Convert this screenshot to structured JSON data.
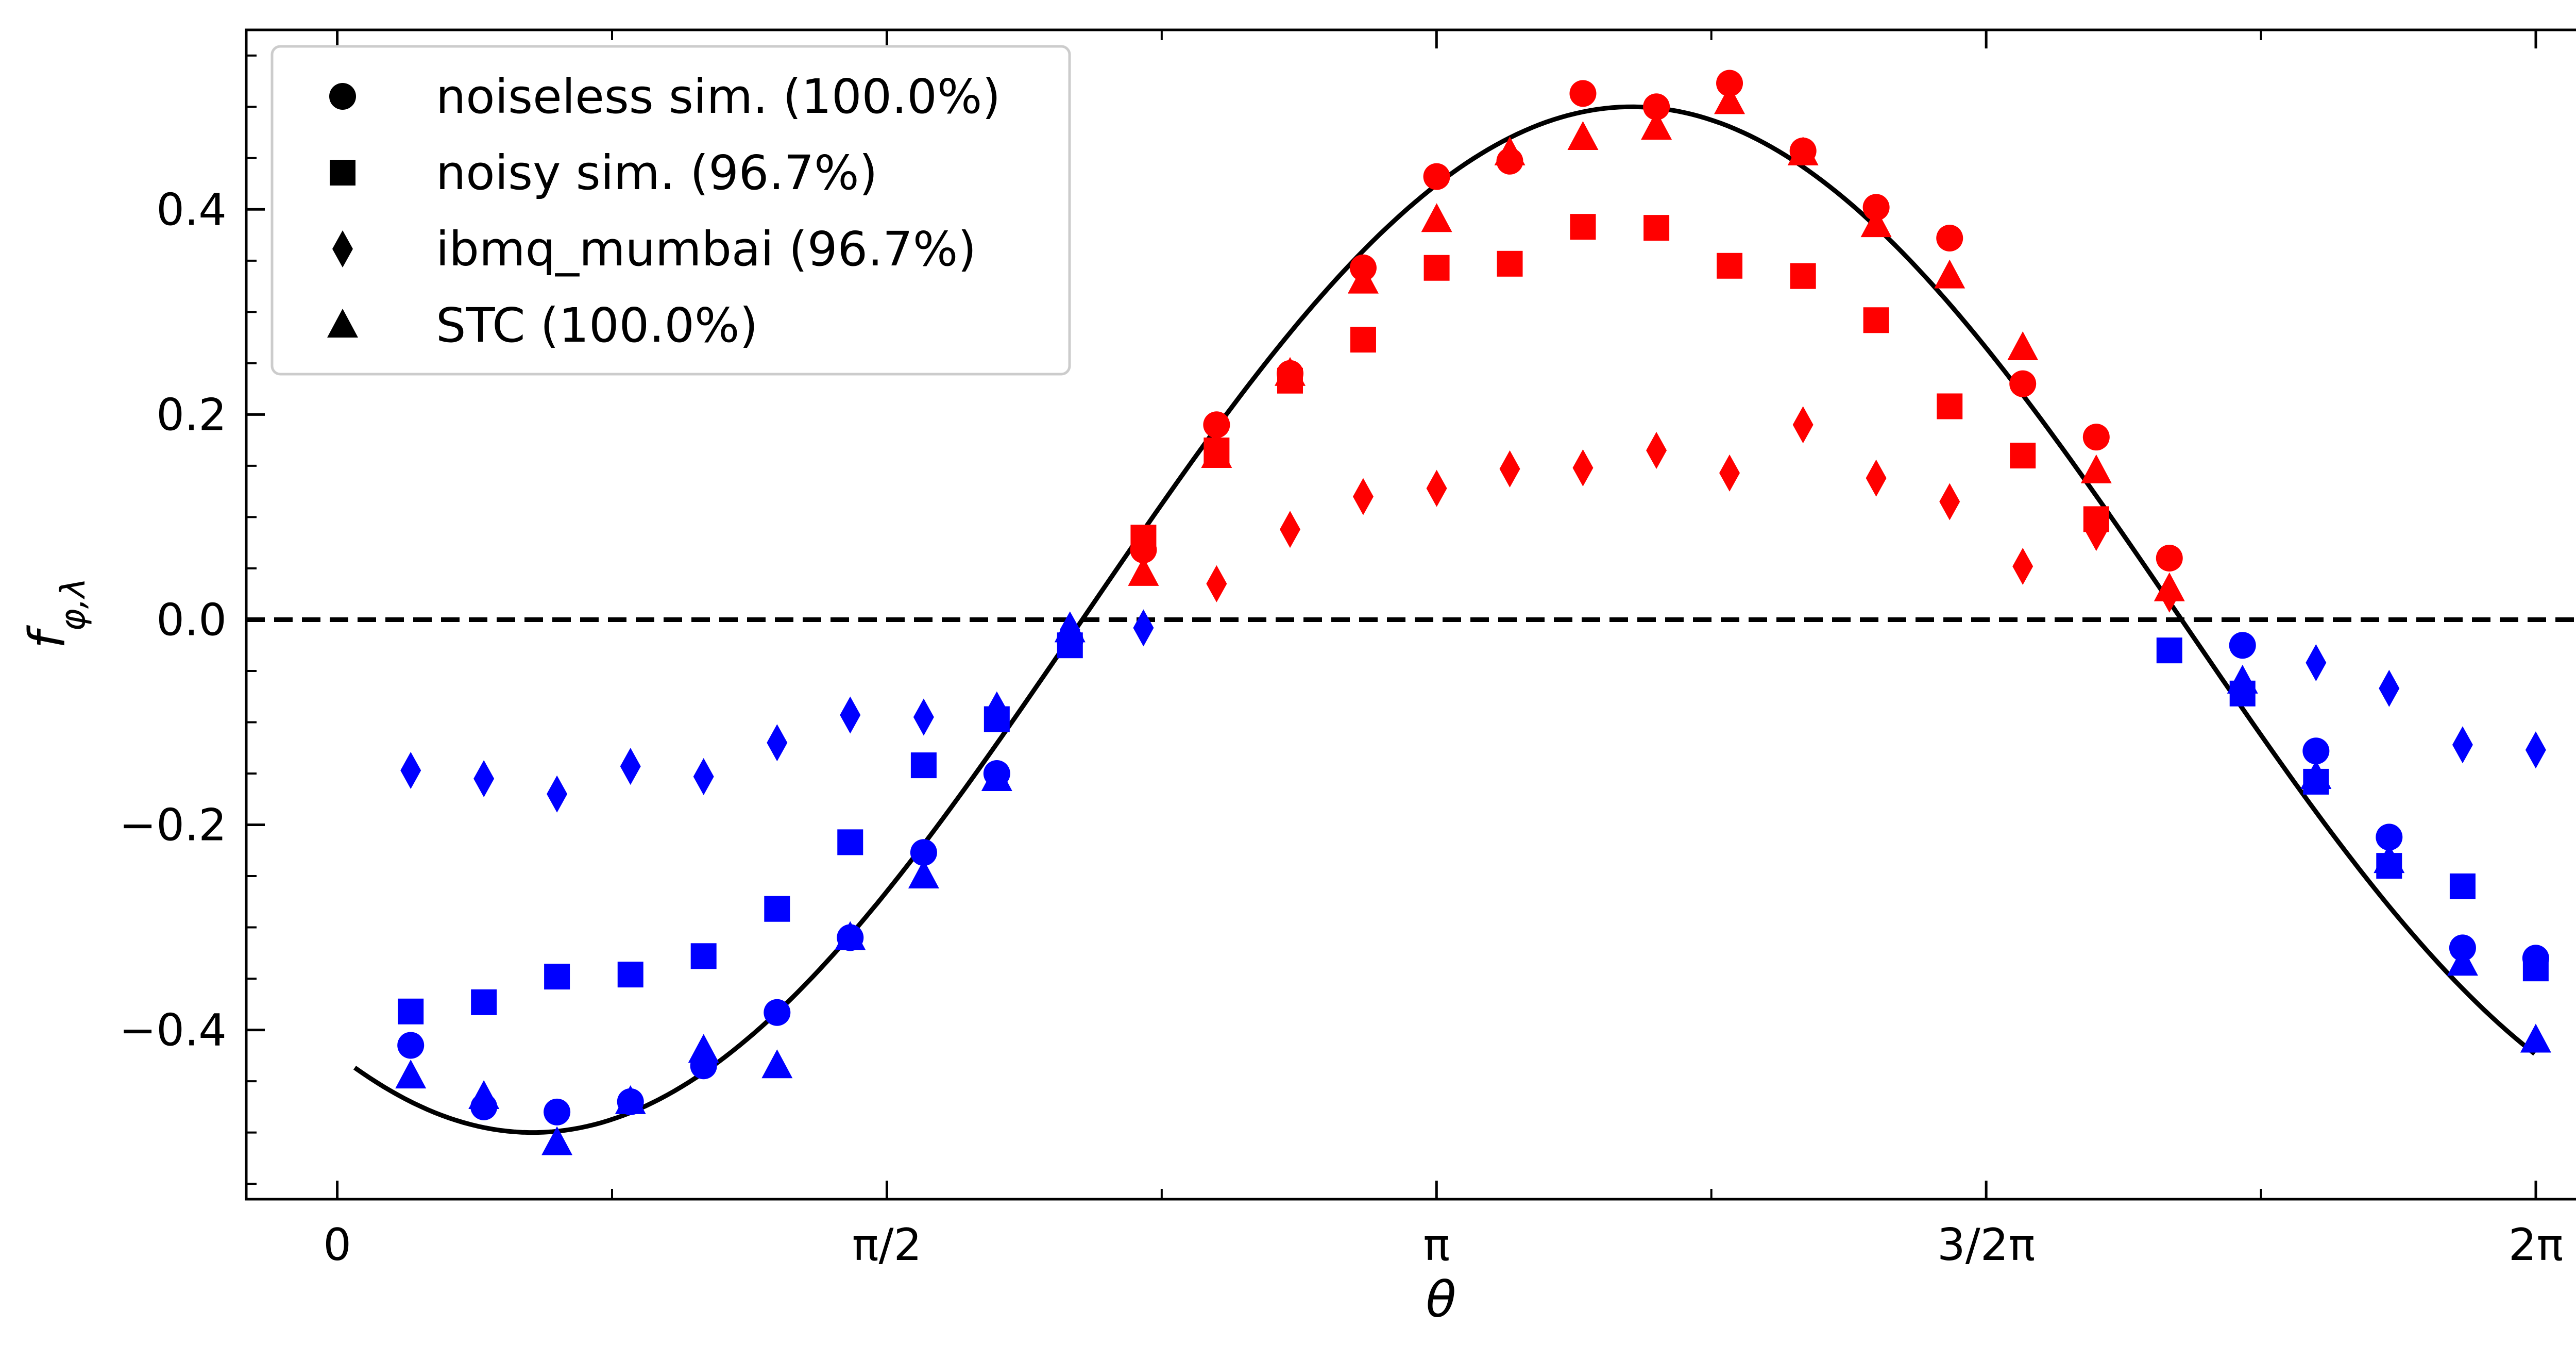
{
  "chart_data": {
    "type": "scatter",
    "xlabel": "θ",
    "ylabel": "f_{φ,λ}",
    "xlim": [
      -0.26,
      6.56
    ],
    "ylim": [
      -0.565,
      0.575
    ],
    "x_ticks": [
      {
        "value": 0,
        "label": "0"
      },
      {
        "value": 1.5708,
        "label": "π/2"
      },
      {
        "value": 3.1416,
        "label": "π"
      },
      {
        "value": 4.7124,
        "label": "3/2π"
      },
      {
        "value": 6.2832,
        "label": "2π"
      }
    ],
    "y_ticks": [
      {
        "value": -0.4,
        "label": "−0.4"
      },
      {
        "value": -0.2,
        "label": "−0.2"
      },
      {
        "value": 0.0,
        "label": "0.0"
      },
      {
        "value": 0.2,
        "label": "0.2"
      },
      {
        "value": 0.4,
        "label": "0.4"
      }
    ],
    "ticks_direction": "in",
    "grid": false,
    "legend_position": "top-left",
    "colors": {
      "positive": "#ff0000",
      "negative": "#0000ff",
      "line": "#000000"
    },
    "legend": [
      {
        "marker": "circle",
        "label": "noiseless sim. (100.0%)"
      },
      {
        "marker": "square",
        "label": "noisy sim. (96.7%)"
      },
      {
        "marker": "diamond",
        "label": "ibmq_mumbai (96.7%)"
      },
      {
        "marker": "triangle",
        "label": "STC (100.0%)"
      }
    ],
    "reference_line": {
      "y": 0.0,
      "style": "dashed"
    },
    "curve": {
      "x_start": 0.05,
      "x_end": 6.28,
      "amplitude": 0.5,
      "phase_shift": 3.7,
      "style": "solid"
    },
    "x": [
      0.21,
      0.419,
      0.628,
      0.838,
      1.047,
      1.257,
      1.466,
      1.676,
      1.885,
      2.094,
      2.304,
      2.513,
      2.723,
      2.932,
      3.142,
      3.351,
      3.56,
      3.77,
      3.979,
      4.189,
      4.398,
      4.608,
      4.817,
      5.027,
      5.236,
      5.445,
      5.655,
      5.864,
      6.074,
      6.283
    ],
    "series": [
      {
        "marker": "circle",
        "values": [
          -0.415,
          -0.475,
          -0.48,
          -0.47,
          -0.435,
          -0.383,
          -0.31,
          -0.227,
          -0.15,
          -0.02,
          0.068,
          0.19,
          0.24,
          0.343,
          0.432,
          0.447,
          0.513,
          0.5,
          0.523,
          0.457,
          0.402,
          0.372,
          0.23,
          0.178,
          0.06,
          -0.025,
          -0.128,
          -0.212,
          -0.32,
          -0.33
        ]
      },
      {
        "marker": "square",
        "values": [
          -0.382,
          -0.373,
          -0.348,
          -0.346,
          -0.328,
          -0.282,
          -0.217,
          -0.142,
          -0.097,
          -0.025,
          0.08,
          0.165,
          0.233,
          0.273,
          0.343,
          0.347,
          0.383,
          0.382,
          0.345,
          0.335,
          0.292,
          0.208,
          0.16,
          0.098,
          -0.03,
          -0.072,
          -0.158,
          -0.24,
          -0.26,
          -0.34
        ]
      },
      {
        "marker": "diamond",
        "values": [
          -0.147,
          -0.155,
          -0.17,
          -0.143,
          -0.153,
          -0.12,
          -0.093,
          -0.095,
          -0.088,
          -0.01,
          -0.008,
          0.035,
          0.088,
          0.12,
          0.128,
          0.147,
          0.148,
          0.165,
          0.143,
          0.19,
          0.138,
          0.115,
          0.052,
          0.085,
          0.025,
          -0.063,
          -0.042,
          -0.067,
          -0.122,
          -0.127
        ]
      },
      {
        "marker": "triangle",
        "values": [
          -0.445,
          -0.465,
          -0.51,
          -0.47,
          -0.42,
          -0.435,
          -0.31,
          -0.25,
          -0.155,
          -0.01,
          0.045,
          0.16,
          0.24,
          0.33,
          0.39,
          0.455,
          0.47,
          0.48,
          0.505,
          0.455,
          0.385,
          0.335,
          0.265,
          0.145,
          0.03,
          -0.06,
          -0.153,
          -0.235,
          -0.335,
          -0.41
        ]
      }
    ]
  }
}
